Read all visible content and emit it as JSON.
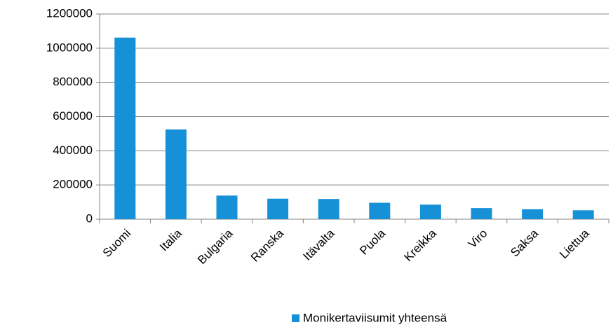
{
  "chart_data": {
    "type": "bar",
    "categories": [
      "Suomi",
      "Italia",
      "Bulgaria",
      "Ranska",
      "Itävalta",
      "Puola",
      "Kreikka",
      "Viro",
      "Saksa",
      "Liettua"
    ],
    "series": [
      {
        "name": "Monikertaviisumit yhteensä",
        "color": "#1690d6",
        "values": [
          1062000,
          525000,
          138000,
          120000,
          118000,
          96000,
          85000,
          65000,
          58000,
          52000
        ]
      }
    ],
    "ylim": [
      0,
      1200000
    ],
    "yticks": [
      0,
      200000,
      400000,
      600000,
      800000,
      1000000,
      1200000
    ],
    "grid": true,
    "legend": "bottom"
  }
}
